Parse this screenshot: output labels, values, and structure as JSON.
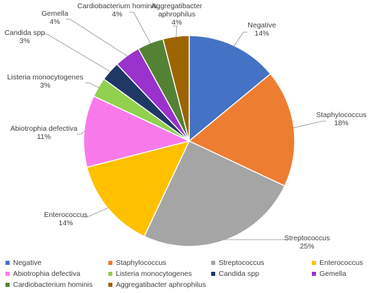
{
  "chart_data": {
    "type": "pie",
    "title": "",
    "legend_position": "bottom",
    "slices": [
      {
        "name": "Negative",
        "value": 14,
        "label": "14%",
        "color": "#4472C4"
      },
      {
        "name": "Staphylococcus",
        "value": 18,
        "label": "18%",
        "color": "#ED7D31"
      },
      {
        "name": "Streptococcus",
        "value": 25,
        "label": "25%",
        "color": "#A5A5A5"
      },
      {
        "name": "Enterococcus",
        "value": 14,
        "label": "14%",
        "color": "#FFC000"
      },
      {
        "name": "Abiotrophia defectiva",
        "value": 11,
        "label": "11%",
        "color": "#F87AEA"
      },
      {
        "name": "Listeria monocytogenes",
        "value": 3,
        "label": "3%",
        "color": "#92D050"
      },
      {
        "name": "Candida spp",
        "value": 3,
        "label": "3%",
        "color": "#203864"
      },
      {
        "name": "Gemella",
        "value": 4,
        "label": "4%",
        "color": "#9933CC"
      },
      {
        "name": "Cardiobacterium hominis",
        "value": 4,
        "label": "4%",
        "color": "#548235"
      },
      {
        "name": "Aggregatibacter aphrophilus",
        "value": 4,
        "label": "4%",
        "color": "#9C6500"
      }
    ]
  }
}
